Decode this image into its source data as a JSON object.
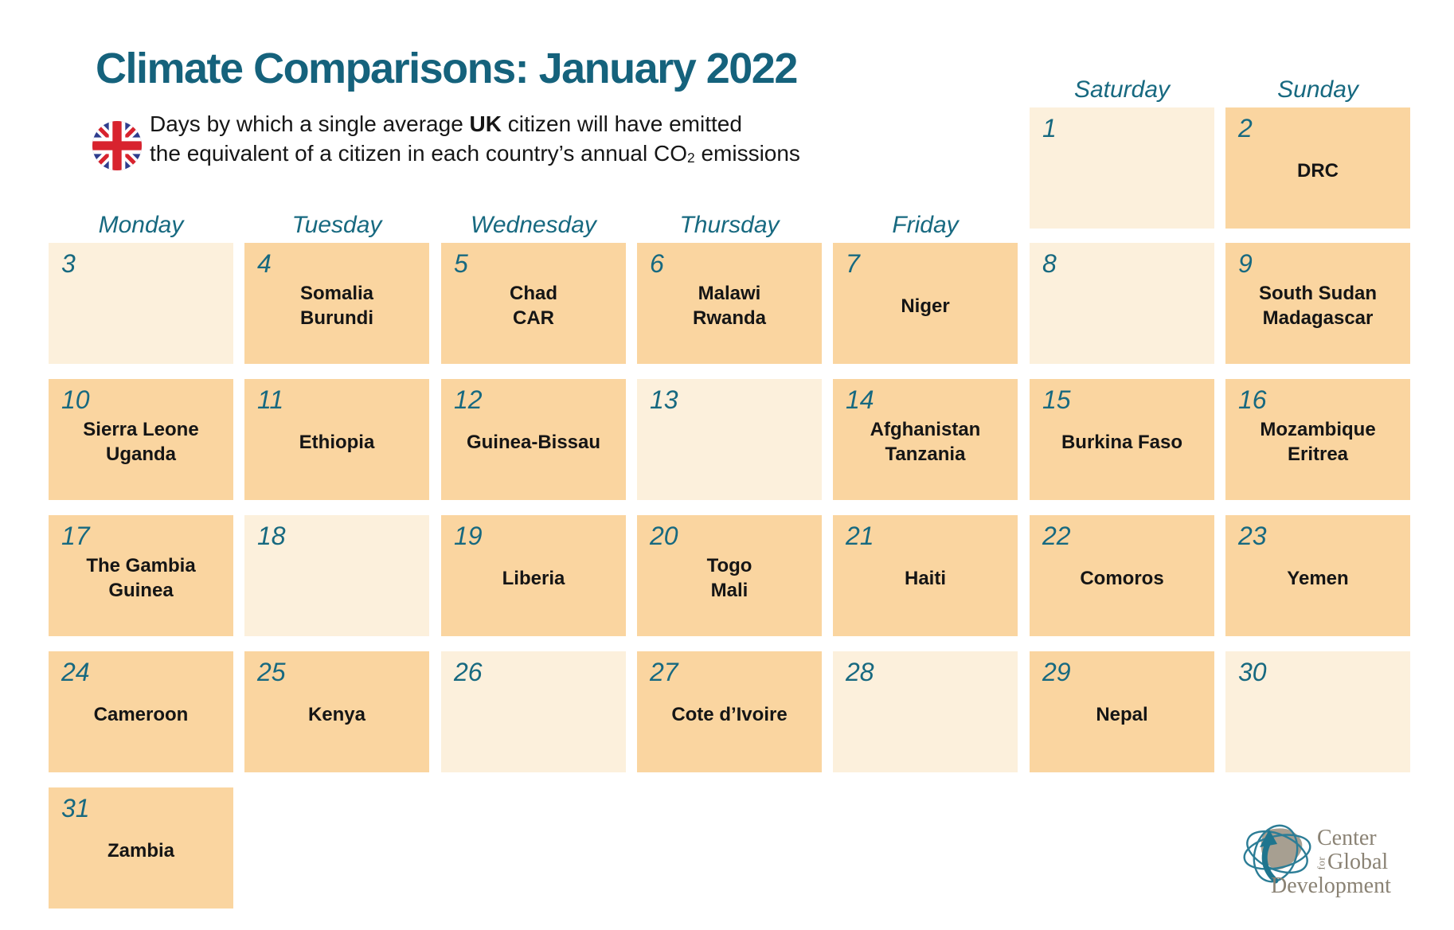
{
  "title": "Climate Comparisons: January 2022",
  "subtitle": {
    "line1_pre": "Days by which a single average ",
    "line1_bold": "UK",
    "line1_post": " citizen will have emitted",
    "line2_pre": "the equivalent of a citizen in each country’s annual CO",
    "line2_sub": "2",
    "line2_post": " emissions"
  },
  "icons": {
    "flag": "uk-flag-icon",
    "logo_globe": "globe-arrow-icon"
  },
  "colors": {
    "teal": "#176980",
    "title_teal": "#15627C",
    "cell_filled": "#FAD5A0",
    "cell_empty": "#FCF0DC",
    "country_text": "#151515",
    "logo_gray": "#8A8274",
    "flag_blue": "#2E3D8E",
    "flag_red": "#D8232E"
  },
  "calendar": {
    "weekday_headers": [
      {
        "label": "Monday",
        "col": 1,
        "band": "main"
      },
      {
        "label": "Tuesday",
        "col": 2,
        "band": "main"
      },
      {
        "label": "Wednesday",
        "col": 3,
        "band": "main"
      },
      {
        "label": "Thursday",
        "col": 4,
        "band": "main"
      },
      {
        "label": "Friday",
        "col": 5,
        "band": "main"
      },
      {
        "label": "Saturday",
        "col": 6,
        "band": "top"
      },
      {
        "label": "Sunday",
        "col": 7,
        "band": "top"
      }
    ],
    "days": [
      {
        "num": "1",
        "col": 6,
        "row": 0,
        "countries": []
      },
      {
        "num": "2",
        "col": 7,
        "row": 0,
        "countries": [
          "DRC"
        ]
      },
      {
        "num": "3",
        "col": 1,
        "row": 1,
        "countries": []
      },
      {
        "num": "4",
        "col": 2,
        "row": 1,
        "countries": [
          "Somalia",
          "Burundi"
        ]
      },
      {
        "num": "5",
        "col": 3,
        "row": 1,
        "countries": [
          "Chad",
          "CAR"
        ]
      },
      {
        "num": "6",
        "col": 4,
        "row": 1,
        "countries": [
          "Malawi",
          "Rwanda"
        ]
      },
      {
        "num": "7",
        "col": 5,
        "row": 1,
        "countries": [
          "Niger"
        ]
      },
      {
        "num": "8",
        "col": 6,
        "row": 1,
        "countries": []
      },
      {
        "num": "9",
        "col": 7,
        "row": 1,
        "countries": [
          "South Sudan",
          "Madagascar"
        ]
      },
      {
        "num": "10",
        "col": 1,
        "row": 2,
        "countries": [
          "Sierra Leone",
          "Uganda"
        ]
      },
      {
        "num": "11",
        "col": 2,
        "row": 2,
        "countries": [
          "Ethiopia"
        ]
      },
      {
        "num": "12",
        "col": 3,
        "row": 2,
        "countries": [
          "Guinea-Bissau"
        ]
      },
      {
        "num": "13",
        "col": 4,
        "row": 2,
        "countries": []
      },
      {
        "num": "14",
        "col": 5,
        "row": 2,
        "countries": [
          "Afghanistan",
          "Tanzania"
        ]
      },
      {
        "num": "15",
        "col": 6,
        "row": 2,
        "countries": [
          "Burkina Faso"
        ]
      },
      {
        "num": "16",
        "col": 7,
        "row": 2,
        "countries": [
          "Mozambique",
          "Eritrea"
        ]
      },
      {
        "num": "17",
        "col": 1,
        "row": 3,
        "countries": [
          "The Gambia",
          "Guinea"
        ]
      },
      {
        "num": "18",
        "col": 2,
        "row": 3,
        "countries": []
      },
      {
        "num": "19",
        "col": 3,
        "row": 3,
        "countries": [
          "Liberia"
        ]
      },
      {
        "num": "20",
        "col": 4,
        "row": 3,
        "countries": [
          "Togo",
          "Mali"
        ]
      },
      {
        "num": "21",
        "col": 5,
        "row": 3,
        "countries": [
          "Haiti"
        ]
      },
      {
        "num": "22",
        "col": 6,
        "row": 3,
        "countries": [
          "Comoros"
        ]
      },
      {
        "num": "23",
        "col": 7,
        "row": 3,
        "countries": [
          "Yemen"
        ]
      },
      {
        "num": "24",
        "col": 1,
        "row": 4,
        "countries": [
          "Cameroon"
        ]
      },
      {
        "num": "25",
        "col": 2,
        "row": 4,
        "countries": [
          "Kenya"
        ]
      },
      {
        "num": "26",
        "col": 3,
        "row": 4,
        "countries": []
      },
      {
        "num": "27",
        "col": 4,
        "row": 4,
        "countries": [
          "Cote d’Ivoire"
        ]
      },
      {
        "num": "28",
        "col": 5,
        "row": 4,
        "countries": []
      },
      {
        "num": "29",
        "col": 6,
        "row": 4,
        "countries": [
          "Nepal"
        ]
      },
      {
        "num": "30",
        "col": 7,
        "row": 4,
        "countries": []
      },
      {
        "num": "31",
        "col": 1,
        "row": 5,
        "countries": [
          "Zambia"
        ]
      }
    ]
  },
  "chart_data": {
    "type": "table",
    "title": "Climate Comparisons: January 2022",
    "subtitle": "Days by which a single average UK citizen will have emitted the equivalent of a citizen in each country’s annual CO2 emissions",
    "x_unit": "day of January 2022",
    "assignments": [
      {
        "day": 2,
        "countries": [
          "DRC"
        ]
      },
      {
        "day": 4,
        "countries": [
          "Somalia",
          "Burundi"
        ]
      },
      {
        "day": 5,
        "countries": [
          "Chad",
          "CAR"
        ]
      },
      {
        "day": 6,
        "countries": [
          "Malawi",
          "Rwanda"
        ]
      },
      {
        "day": 7,
        "countries": [
          "Niger"
        ]
      },
      {
        "day": 9,
        "countries": [
          "South Sudan",
          "Madagascar"
        ]
      },
      {
        "day": 10,
        "countries": [
          "Sierra Leone",
          "Uganda"
        ]
      },
      {
        "day": 11,
        "countries": [
          "Ethiopia"
        ]
      },
      {
        "day": 12,
        "countries": [
          "Guinea-Bissau"
        ]
      },
      {
        "day": 14,
        "countries": [
          "Afghanistan",
          "Tanzania"
        ]
      },
      {
        "day": 15,
        "countries": [
          "Burkina Faso"
        ]
      },
      {
        "day": 16,
        "countries": [
          "Mozambique",
          "Eritrea"
        ]
      },
      {
        "day": 17,
        "countries": [
          "The Gambia",
          "Guinea"
        ]
      },
      {
        "day": 19,
        "countries": [
          "Liberia"
        ]
      },
      {
        "day": 20,
        "countries": [
          "Togo",
          "Mali"
        ]
      },
      {
        "day": 21,
        "countries": [
          "Haiti"
        ]
      },
      {
        "day": 22,
        "countries": [
          "Comoros"
        ]
      },
      {
        "day": 23,
        "countries": [
          "Yemen"
        ]
      },
      {
        "day": 24,
        "countries": [
          "Cameroon"
        ]
      },
      {
        "day": 25,
        "countries": [
          "Kenya"
        ]
      },
      {
        "day": 27,
        "countries": [
          "Cote d’Ivoire"
        ]
      },
      {
        "day": 29,
        "countries": [
          "Nepal"
        ]
      },
      {
        "day": 31,
        "countries": [
          "Zambia"
        ]
      }
    ]
  },
  "logo": {
    "line1": "Center",
    "line2_small": "for",
    "line2": "Global",
    "line3": "Development"
  }
}
